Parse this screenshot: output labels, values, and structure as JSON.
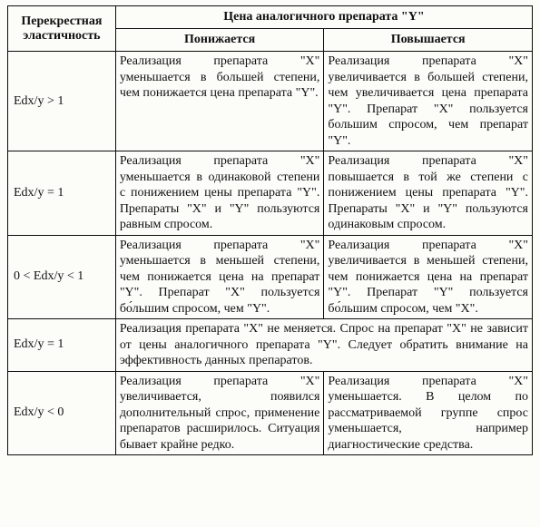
{
  "header": {
    "elasticity": "Перекрестная эластичность",
    "price_header": "Цена аналогичного препарата \"Y\"",
    "decrease": "Понижается",
    "increase": "Повышается"
  },
  "rows": {
    "r1": {
      "label": "Edx/y > 1",
      "decrease": "Реализация препарата \"X\" уменьшается в большей степени, чем понижается цена препарата \"Y\".",
      "increase": "Реализация препарата \"X\" увеличивается в большей степени, чем увеличивается цена препарата \"Y\". Препа­рат \"X\" пользуется большим спросом, чем препарат \"Y\"."
    },
    "r2": {
      "label": "Edx/y = 1",
      "decrease": "Реализация препарата \"X\" уменьшается в одинаковой степени с понижением це­ны препарата \"Y\". Препа­раты \"X\" и \"Y\" пользуются равным спросом.",
      "increase": "Реализация препарата \"X\" повышается в той же степе­ни с понижением цены пре­парата \"Y\". Препараты \"X\" и \"Y\" пользуются одинаковым спросом."
    },
    "r3": {
      "label": "0 < Edx/y < 1",
      "decrease": "Реализация препарата \"X\" уменьшается в меньшей степени, чем понижается цена на препарат \"Y\". Пре­парат \"X\" пользуется бо́льшим спросом, чем \"Y\".",
      "increase": "Реализация препарата \"X\" увеличивается в меньшей степени, чем понижается це­на на препарат \"Y\". Препа­рат \"Y\" пользуется бо́льшим спросом, чем \"X\"."
    },
    "r4": {
      "label": "Edx/y = 1",
      "merged": "Реализация препарата \"X\" не меняется. Спрос на препа­рат \"X\" не зависит от цены аналогичного препарата \"Y\". Следует обратить внимание на эффективность данных препаратов."
    },
    "r5": {
      "label": "Edx/y < 0",
      "decrease": "Реализация препарата \"X\" увеличивается, появился дополнительный спрос, применение препаратов расширилось. Ситуация бывает крайне редко.",
      "increase": "Реализация препарата \"X\" уменьшается. В целом по рассматриваемой группе спрос уменьшается, напри­мер диагностические средст­ва."
    }
  }
}
